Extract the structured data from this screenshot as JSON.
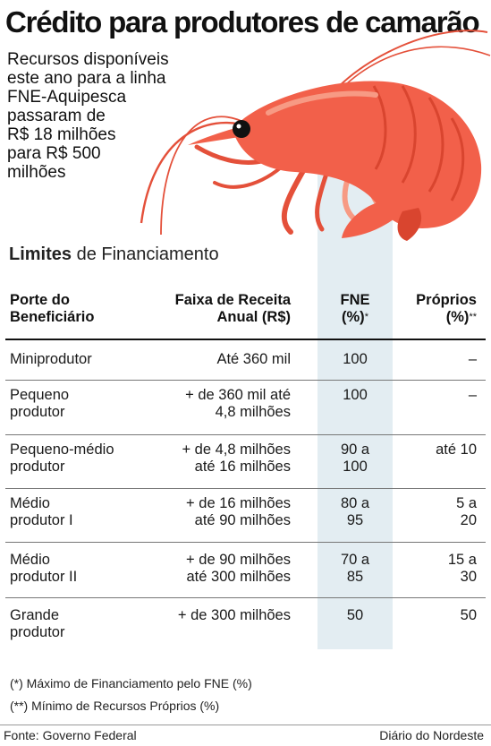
{
  "title": "Crédito para produtores de camarão",
  "intro": {
    "lines": [
      "Recursos disponíveis",
      "este ano para a linha",
      "FNE-Aquipesca",
      "passaram de",
      "R$ 18 milhões",
      "para R$ 500",
      "milhões"
    ]
  },
  "illustration": {
    "name": "shrimp-illustration",
    "body_color": "#f2604a",
    "shade_color": "#d9452f",
    "highlight_color": "#f79a84"
  },
  "section": {
    "title_bold": "Limites",
    "title_rest": " de Financiamento"
  },
  "table": {
    "headers": {
      "porte": [
        "Porte do",
        "Beneficiário"
      ],
      "faixa": [
        "Faixa de Receita",
        "Anual (R$)"
      ],
      "fne": [
        "FNE",
        "(%)",
        "*"
      ],
      "proprios": [
        "Próprios",
        "(%)",
        "**"
      ]
    },
    "rows": [
      {
        "porte": [
          "Miniprodutor"
        ],
        "faixa": [
          "Até 360 mil"
        ],
        "fne": [
          "100"
        ],
        "proprios": [
          "–"
        ]
      },
      {
        "porte": [
          "Pequeno",
          "produtor"
        ],
        "faixa": [
          "+ de 360 mil até",
          "4,8 milhões"
        ],
        "fne": [
          "100"
        ],
        "proprios": [
          "–"
        ]
      },
      {
        "porte": [
          "Pequeno-médio",
          "produtor"
        ],
        "faixa": [
          "+ de 4,8 milhões",
          "até 16 milhões"
        ],
        "fne": [
          "90 a",
          "100"
        ],
        "proprios": [
          "até 10"
        ]
      },
      {
        "porte": [
          "Médio",
          "produtor I"
        ],
        "faixa": [
          "+ de 16 milhões",
          "até 90 milhões"
        ],
        "fne": [
          "80 a",
          "95"
        ],
        "proprios": [
          "5 a",
          "20"
        ]
      },
      {
        "porte": [
          "Médio",
          "produtor II"
        ],
        "faixa": [
          "+ de 90 milhões",
          "até 300 milhões"
        ],
        "fne": [
          "70 a",
          "85"
        ],
        "proprios": [
          "15 a",
          "30"
        ]
      },
      {
        "porte": [
          "Grande",
          "produtor"
        ],
        "faixa": [
          "+ de 300 milhões"
        ],
        "fne": [
          "50"
        ],
        "proprios": [
          "50"
        ]
      }
    ]
  },
  "notes": [
    "(*) Máximo de Financiamento pelo FNE (%)",
    "(**) Mínimo de Recursos Próprios (%)"
  ],
  "footer": {
    "source": "Fonte: Governo Federal",
    "publisher": "Diário do Nordeste"
  },
  "colors": {
    "fne_highlight": "#e3edf2"
  }
}
